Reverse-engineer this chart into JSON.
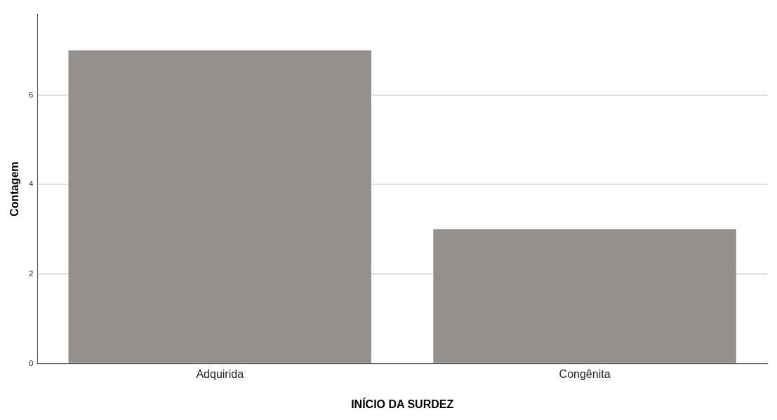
{
  "chart_data": {
    "type": "bar",
    "xlabel": "INÍCIO DA SURDEZ",
    "ylabel": "Contagem",
    "categories": [
      "Adquirida",
      "Congênita"
    ],
    "values": [
      7,
      3
    ],
    "color": "#958f8e",
    "ylim": [
      0,
      7.8
    ],
    "yticks": [
      0,
      2,
      4,
      6
    ],
    "grid": "y",
    "legend": false
  }
}
